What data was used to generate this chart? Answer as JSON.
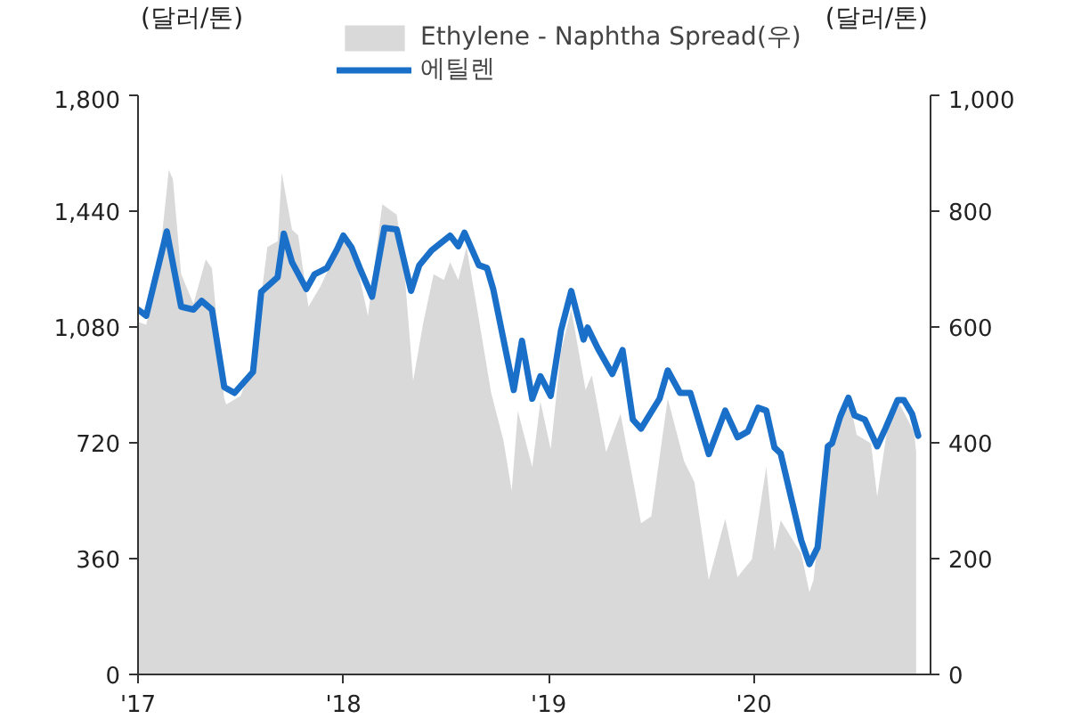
{
  "chart_data": {
    "type": "area",
    "ylabel": "(달러/톤)",
    "y2label": "(달러/톤)",
    "legend": "top",
    "xlim": [
      2017,
      2020.86
    ],
    "xticks": [
      {
        "value": 2017,
        "label": "'17"
      },
      {
        "value": 2018,
        "label": "'18"
      },
      {
        "value": 2019,
        "label": "'19"
      },
      {
        "value": 2020,
        "label": "'20"
      }
    ],
    "ylim": [
      0,
      1800
    ],
    "yticks": [
      0,
      360,
      720,
      {
        "value": 1080,
        "label": "1,080"
      },
      {
        "value": 1440,
        "label": "1,440"
      },
      {
        "value": 1800,
        "label": "1,800"
      }
    ],
    "y2lim": [
      0,
      1000
    ],
    "y2ticks": [
      0,
      200,
      400,
      600,
      800,
      {
        "value": 1000,
        "label": "1,000"
      }
    ],
    "series": [
      {
        "name": "Ethylene - Naphtha Spread(우)",
        "axis": "y2",
        "color": "#d9d9d9",
        "x": [
          2017.0,
          2017.04,
          2017.1,
          2017.15,
          2017.17,
          2017.21,
          2017.27,
          2017.33,
          2017.36,
          2017.42,
          2017.43,
          2017.5,
          2017.56,
          2017.63,
          2017.68,
          2017.7,
          2017.75,
          2017.78,
          2017.83,
          2017.89,
          2017.97,
          2018.01,
          2018.07,
          2018.12,
          2018.19,
          2018.26,
          2018.3,
          2018.34,
          2018.39,
          2018.44,
          2018.49,
          2018.52,
          2018.56,
          2018.6,
          2018.65,
          2018.72,
          2018.78,
          2018.82,
          2018.85,
          2018.92,
          2018.96,
          2019.01,
          2019.06,
          2019.11,
          2019.18,
          2019.21,
          2019.28,
          2019.35,
          2019.45,
          2019.5,
          2019.58,
          2019.66,
          2019.71,
          2019.78,
          2019.86,
          2019.92,
          2019.99,
          2020.06,
          2020.1,
          2020.13,
          2020.23,
          2020.27,
          2020.29,
          2020.35,
          2020.42,
          2020.47,
          2020.5,
          2020.57,
          2020.6,
          2020.65,
          2020.71,
          2020.78,
          2020.79
        ],
        "values": [
          609,
          604,
          701,
          871,
          855,
          691,
          640,
          717,
          701,
          476,
          466,
          481,
          538,
          738,
          748,
          866,
          768,
          758,
          635,
          671,
          732,
          753,
          701,
          619,
          812,
          794,
          686,
          507,
          609,
          691,
          681,
          712,
          681,
          738,
          635,
          486,
          404,
          317,
          455,
          358,
          471,
          389,
          558,
          630,
          491,
          517,
          384,
          450,
          261,
          273,
          476,
          368,
          332,
          163,
          269,
          168,
          199,
          358,
          214,
          266,
          209,
          142,
          163,
          368,
          440,
          466,
          414,
          399,
          307,
          425,
          466,
          419,
          384
        ]
      },
      {
        "name": "에틸렌",
        "type": "line",
        "axis": "y",
        "color": "#1a70c8",
        "x": [
          2017.0,
          2017.04,
          2017.14,
          2017.21,
          2017.27,
          2017.31,
          2017.36,
          2017.42,
          2017.47,
          2017.56,
          2017.6,
          2017.68,
          2017.71,
          2017.75,
          2017.82,
          2017.86,
          2017.92,
          2017.97,
          2018.0,
          2018.04,
          2018.08,
          2018.14,
          2018.2,
          2018.26,
          2018.33,
          2018.37,
          2018.43,
          2018.52,
          2018.56,
          2018.59,
          2018.66,
          2018.7,
          2018.73,
          2018.83,
          2018.87,
          2018.92,
          2018.96,
          2019.01,
          2019.06,
          2019.11,
          2019.17,
          2019.19,
          2019.24,
          2019.31,
          2019.36,
          2019.41,
          2019.45,
          2019.54,
          2019.58,
          2019.64,
          2019.69,
          2019.78,
          2019.86,
          2019.92,
          2019.97,
          2020.02,
          2020.06,
          2020.1,
          2020.13,
          2020.23,
          2020.27,
          2020.31,
          2020.36,
          2020.38,
          2020.42,
          2020.46,
          2020.49,
          2020.54,
          2020.6,
          2020.64,
          2020.7,
          2020.73,
          2020.77,
          2020.8
        ],
        "values": [
          1134,
          1115,
          1377,
          1143,
          1134,
          1161,
          1134,
          893,
          875,
          940,
          1189,
          1235,
          1370,
          1281,
          1198,
          1244,
          1263,
          1322,
          1364,
          1327,
          1263,
          1174,
          1388,
          1383,
          1192,
          1272,
          1318,
          1364,
          1331,
          1373,
          1272,
          1263,
          1198,
          884,
          1037,
          857,
          927,
          866,
          1069,
          1192,
          1041,
          1078,
          1013,
          934,
          1008,
          792,
          764,
          857,
          945,
          875,
          875,
          685,
          820,
          737,
          755,
          829,
          820,
          705,
          687,
          417,
          343,
          395,
          709,
          718,
          801,
          860,
          805,
          792,
          709,
          764,
          853,
          853,
          810,
          742
        ]
      }
    ]
  }
}
